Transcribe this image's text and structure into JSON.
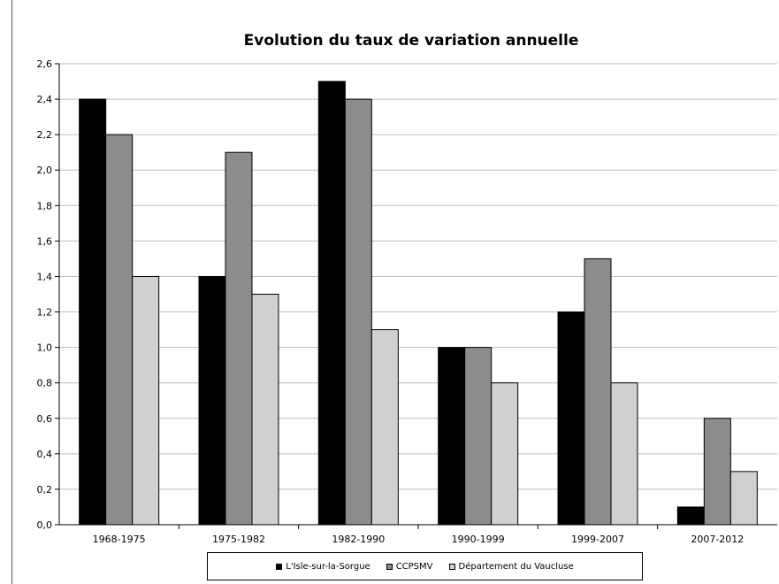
{
  "chart_data": {
    "type": "bar",
    "title": "Evolution du taux de variation annuelle",
    "xlabel": "",
    "ylabel": "",
    "categories": [
      "1968-1975",
      "1975-1982",
      "1982-1990",
      "1990-1999",
      "1999-2007",
      "2007-2012"
    ],
    "series": [
      {
        "name": "L'Isle-sur-la-Sorgue",
        "color": "#000000",
        "values": [
          2.4,
          1.4,
          2.5,
          1.0,
          1.2,
          0.1
        ]
      },
      {
        "name": "CCPSMV",
        "color": "#8c8c8c",
        "values": [
          2.2,
          2.1,
          2.4,
          1.0,
          1.5,
          0.6
        ]
      },
      {
        "name": "Département du Vaucluse",
        "color": "#d0d0d0",
        "values": [
          1.4,
          1.3,
          1.1,
          0.8,
          0.8,
          0.3
        ]
      }
    ],
    "ylim": [
      0,
      2.6
    ],
    "yticks": [
      "0,0",
      "0,2",
      "0,4",
      "0,6",
      "0,8",
      "1,0",
      "1,2",
      "1,4",
      "1,6",
      "1,8",
      "2,0",
      "2,2",
      "2,4",
      "2,6"
    ],
    "grid": true,
    "legend_position": "bottom"
  }
}
